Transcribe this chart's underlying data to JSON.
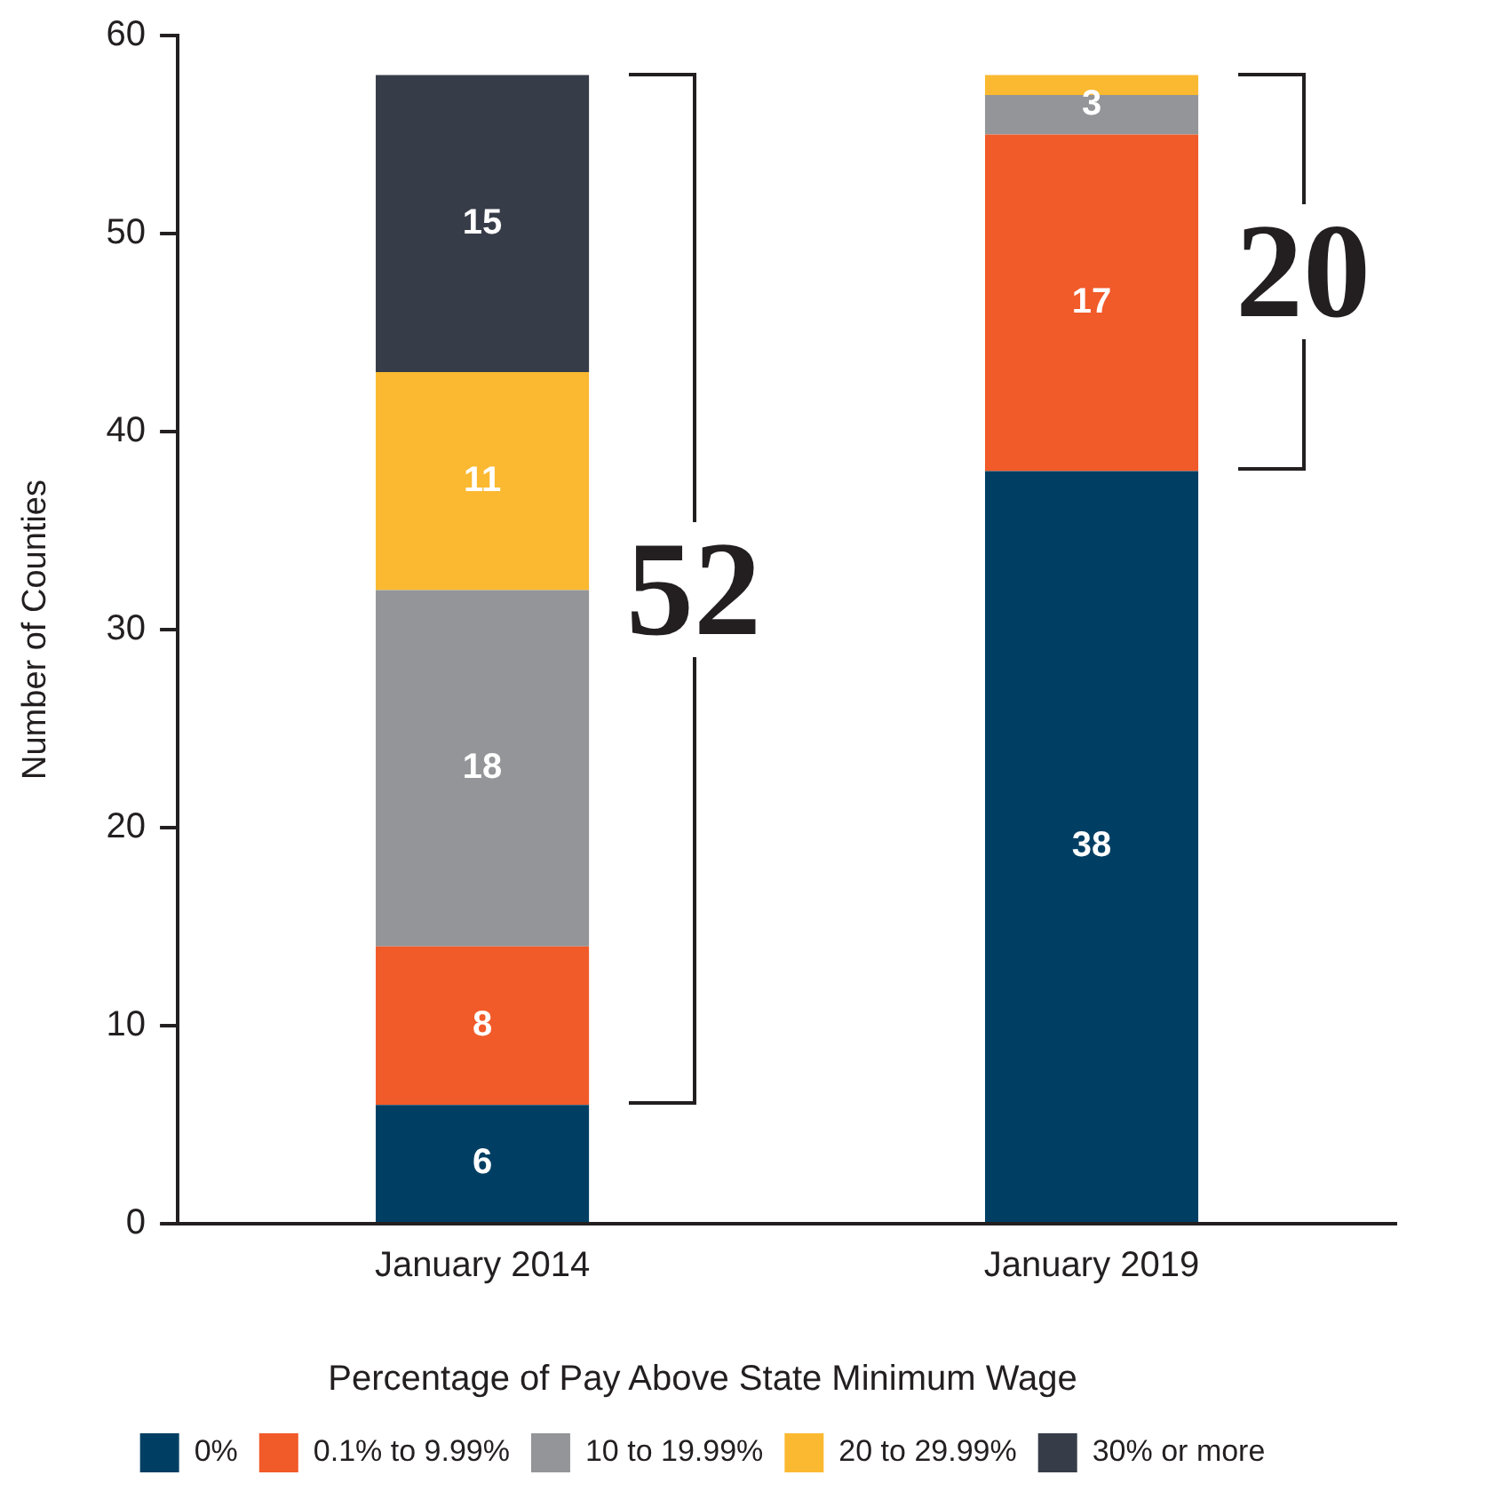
{
  "chart_data": {
    "type": "bar",
    "ylabel": "Number of Counties",
    "legend_title": "Percentage of Pay Above State Minimum Wage",
    "categories": [
      "January 2014",
      "January 2019"
    ],
    "stacked": true,
    "ylim": [
      0,
      60
    ],
    "yticks": [
      0,
      10,
      20,
      30,
      40,
      50,
      60
    ],
    "grid": false,
    "legend": "bottom",
    "series": [
      {
        "name": "0%",
        "color": "#003f63",
        "values": [
          6,
          38
        ],
        "value_labels": [
          "6",
          "38"
        ]
      },
      {
        "name": "0.1% to 9.99%",
        "color": "#f15a29",
        "values": [
          8,
          17
        ],
        "value_labels": [
          "8",
          "17"
        ]
      },
      {
        "name": "10 to 19.99%",
        "color": "#939598",
        "values": [
          18,
          2
        ],
        "value_labels": [
          "18",
          null
        ]
      },
      {
        "name": "20 to 29.99%",
        "color": "#fbb931",
        "values": [
          11,
          1
        ],
        "value_labels": [
          "11",
          null
        ]
      },
      {
        "name": "30% or more",
        "color": "#373d48",
        "values": [
          15,
          0
        ],
        "value_labels": [
          "15",
          null
        ]
      }
    ],
    "annotations": [
      "52",
      "20",
      "3"
    ]
  }
}
